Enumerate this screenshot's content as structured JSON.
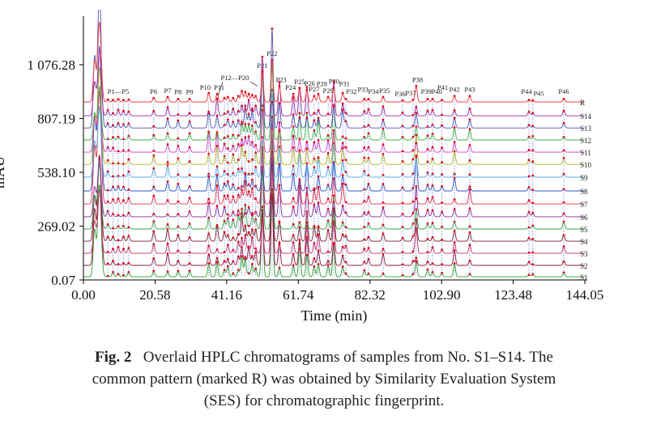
{
  "chart_data": {
    "type": "line",
    "title": "",
    "xlabel": "Time (min)",
    "ylabel": "mAU",
    "xlim": [
      0.0,
      144.05
    ],
    "ylim": [
      0.07,
      1076.28
    ],
    "x_ticks": [
      "0.00",
      "20.58",
      "41.16",
      "61.74",
      "82.32",
      "102.90",
      "123.48",
      "144.05"
    ],
    "x_tick_values": [
      0.0,
      20.58,
      41.16,
      61.74,
      82.32,
      102.9,
      123.48,
      144.05
    ],
    "y_ticks": [
      "0.07",
      "269.02",
      "538.10",
      "807.19",
      "1 076.28"
    ],
    "y_tick_values": [
      0.07,
      269.02,
      538.1,
      807.19,
      1076.28
    ],
    "grid": false,
    "stacked_offset": true,
    "series": [
      {
        "name": "S1",
        "baseline": 16,
        "color": "#2ca02c"
      },
      {
        "name": "S2",
        "baseline": 73,
        "color": "#8b1a3a"
      },
      {
        "name": "S3",
        "baseline": 133,
        "color": "#c0306a"
      },
      {
        "name": "S4",
        "baseline": 194,
        "color": "#7a1f2b"
      },
      {
        "name": "S5",
        "baseline": 255,
        "color": "#3aa046"
      },
      {
        "name": "S6",
        "baseline": 316,
        "color": "#8a2a9a"
      },
      {
        "name": "S7",
        "baseline": 380,
        "color": "#e0304a"
      },
      {
        "name": "S8",
        "baseline": 445,
        "color": "#3050c0"
      },
      {
        "name": "S9",
        "baseline": 514,
        "color": "#5aa8e0"
      },
      {
        "name": "S10",
        "baseline": 578,
        "color": "#b0b020"
      },
      {
        "name": "S11",
        "baseline": 639,
        "color": "#d040c0"
      },
      {
        "name": "S12",
        "baseline": 700,
        "color": "#40b040"
      },
      {
        "name": "S13",
        "baseline": 760,
        "color": "#5050b0"
      },
      {
        "name": "S14",
        "baseline": 821,
        "color": "#9a2aa0"
      },
      {
        "name": "R",
        "baseline": 890,
        "color": "#e8404a"
      }
    ],
    "common_peaks": [
      {
        "id": "P1",
        "t": 7.0,
        "h": 12
      },
      {
        "id": "P2",
        "t": 8.5,
        "h": 10
      },
      {
        "id": "P3",
        "t": 10.0,
        "h": 14
      },
      {
        "id": "P4",
        "t": 11.5,
        "h": 10
      },
      {
        "id": "P5",
        "t": 13.0,
        "h": 12
      },
      {
        "id": "P6",
        "t": 20.2,
        "h": 20
      },
      {
        "id": "P7",
        "t": 24.2,
        "h": 25
      },
      {
        "id": "P8",
        "t": 27.2,
        "h": 15
      },
      {
        "id": "P9",
        "t": 30.5,
        "h": 15
      },
      {
        "id": "P10",
        "t": 36.0,
        "h": 45
      },
      {
        "id": "P11",
        "t": 38.4,
        "h": 40
      },
      {
        "id": "P12",
        "t": 40.5,
        "h": 20
      },
      {
        "id": "P13",
        "t": 41.5,
        "h": 25
      },
      {
        "id": "P14",
        "t": 43.0,
        "h": 20
      },
      {
        "id": "P15",
        "t": 44.5,
        "h": 30
      },
      {
        "id": "P16",
        "t": 45.5,
        "h": 55
      },
      {
        "id": "P17",
        "t": 46.5,
        "h": 50
      },
      {
        "id": "P18",
        "t": 47.5,
        "h": 40
      },
      {
        "id": "P19",
        "t": 48.5,
        "h": 35
      },
      {
        "id": "P20",
        "t": 49.5,
        "h": 30
      },
      {
        "id": "P21",
        "t": 51.4,
        "h": 150
      },
      {
        "id": "P22",
        "t": 54.2,
        "h": 210
      },
      {
        "id": "P23",
        "t": 56.3,
        "h": 80
      },
      {
        "id": "P24",
        "t": 60.3,
        "h": 40
      },
      {
        "id": "P25",
        "t": 62.1,
        "h": 70
      },
      {
        "id": "P26",
        "t": 64.2,
        "h": 60
      },
      {
        "id": "P27",
        "t": 66.3,
        "h": 30
      },
      {
        "id": "P28",
        "t": 67.5,
        "h": 40
      },
      {
        "id": "P29",
        "t": 70.3,
        "h": 25
      },
      {
        "id": "P30",
        "t": 71.9,
        "h": 70
      },
      {
        "id": "P31",
        "t": 74.5,
        "h": 45
      },
      {
        "id": "P32",
        "t": 75.4,
        "h": 15
      },
      {
        "id": "P33",
        "t": 80.7,
        "h": 15
      },
      {
        "id": "P34",
        "t": 81.9,
        "h": 15
      },
      {
        "id": "P35",
        "t": 86.1,
        "h": 25
      },
      {
        "id": "P36",
        "t": 91.7,
        "h": 8
      },
      {
        "id": "P37",
        "t": 94.7,
        "h": 10
      },
      {
        "id": "P38",
        "t": 95.6,
        "h": 80
      },
      {
        "id": "P39",
        "t": 98.9,
        "h": 15
      },
      {
        "id": "P40",
        "t": 100.3,
        "h": 15
      },
      {
        "id": "P41",
        "t": 103.0,
        "h": 10
      },
      {
        "id": "P42",
        "t": 106.6,
        "h": 30
      },
      {
        "id": "P43",
        "t": 111.0,
        "h": 30
      },
      {
        "id": "P44",
        "t": 128.0,
        "h": 10
      },
      {
        "id": "P45",
        "t": 129.1,
        "h": 8
      },
      {
        "id": "P46",
        "t": 138.0,
        "h": 15
      }
    ],
    "peak_labels": [
      {
        "text": "P1—P5",
        "t": 10.0,
        "h": 40
      },
      {
        "text": "P6",
        "t": 20.2,
        "h": 40
      },
      {
        "text": "P7",
        "t": 24.2,
        "h": 45
      },
      {
        "text": "P8",
        "t": 27.2,
        "h": 38
      },
      {
        "text": "P9",
        "t": 30.5,
        "h": 38
      },
      {
        "text": "P10",
        "t": 35.0,
        "h": 60
      },
      {
        "text": "P11",
        "t": 39.0,
        "h": 60
      },
      {
        "text": "P12—P20",
        "t": 43.5,
        "h": 110
      },
      {
        "text": "P21",
        "t": 51.4,
        "h": 170
      },
      {
        "text": "P22",
        "t": 54.2,
        "h": 230
      },
      {
        "text": "P23",
        "t": 56.8,
        "h": 100
      },
      {
        "text": "P24",
        "t": 59.5,
        "h": 60
      },
      {
        "text": "P25",
        "t": 62.1,
        "h": 90
      },
      {
        "text": "P26",
        "t": 65.0,
        "h": 82
      },
      {
        "text": "P27",
        "t": 66.3,
        "h": 52
      },
      {
        "text": "P28",
        "t": 68.5,
        "h": 80
      },
      {
        "text": "P29",
        "t": 70.3,
        "h": 45
      },
      {
        "text": "P30",
        "t": 72.0,
        "h": 92
      },
      {
        "text": "P31",
        "t": 75.0,
        "h": 80
      },
      {
        "text": "P32",
        "t": 77.0,
        "h": 40
      },
      {
        "text": "P33",
        "t": 80.3,
        "h": 50
      },
      {
        "text": "P34",
        "t": 83.3,
        "h": 40
      },
      {
        "text": "P35",
        "t": 86.5,
        "h": 45
      },
      {
        "text": "P36",
        "t": 91.0,
        "h": 28
      },
      {
        "text": "P37",
        "t": 94.0,
        "h": 32
      },
      {
        "text": "P38",
        "t": 96.0,
        "h": 100
      },
      {
        "text": "P39",
        "t": 98.5,
        "h": 40
      },
      {
        "text": "P40",
        "t": 101.5,
        "h": 40
      },
      {
        "text": "P41",
        "t": 103.2,
        "h": 60
      },
      {
        "text": "P42",
        "t": 106.6,
        "h": 50
      },
      {
        "text": "P43",
        "t": 111.0,
        "h": 50
      },
      {
        "text": "P44",
        "t": 127.3,
        "h": 40
      },
      {
        "text": "P45",
        "t": 130.8,
        "h": 30
      },
      {
        "text": "P46",
        "t": 138.0,
        "h": 40
      }
    ]
  },
  "caption": {
    "fig_label": "Fig. 2",
    "line1": "Overlaid HPLC chromatograms of samples from No. S1–S14. The",
    "line2": "common pattern (marked R) was obtained by Similarity Evaluation System",
    "line3": "(SES) for chromatographic fingerprint."
  }
}
